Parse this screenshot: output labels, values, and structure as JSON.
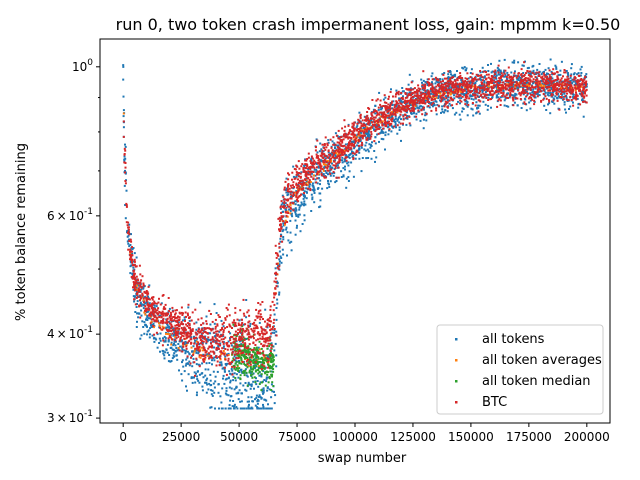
{
  "chart_data": {
    "type": "scatter",
    "title": "run 0, two token crash impermanent loss, gain: mpmm k=0.50",
    "xlabel": "swap number",
    "ylabel": "% token balance remaining",
    "xlim": [
      -10000,
      210000
    ],
    "ylim": [
      0.295,
      1.1
    ],
    "yscale": "log",
    "x_ticks": [
      0,
      25000,
      50000,
      75000,
      100000,
      125000,
      150000,
      175000,
      200000
    ],
    "x_tick_labels": [
      "0",
      "25000",
      "50000",
      "75000",
      "100000",
      "125000",
      "150000",
      "175000",
      "200000"
    ],
    "y_major_ticks": [
      0.3,
      0.4,
      0.6,
      1.0
    ],
    "y_tick_labels": [
      {
        "base": "3",
        "exp": "-1"
      },
      {
        "base": "4",
        "exp": "-1"
      },
      {
        "base": "6",
        "exp": "-1"
      },
      {
        "base": "10",
        "exp": "0"
      }
    ],
    "y_minor_ticks": [
      0.5,
      0.7,
      0.8,
      0.9
    ],
    "legend_position": "lower-right",
    "series": [
      {
        "name": "all tokens",
        "color": "#1f77b4",
        "x": [
          0,
          500,
          2000,
          5000,
          10000,
          15000,
          20000,
          25000,
          30000,
          35000,
          40000,
          45000,
          50000,
          55000,
          60000,
          64000,
          66000,
          68000,
          70000,
          75000,
          80000,
          90000,
          100000,
          110000,
          120000,
          130000,
          140000,
          150000,
          160000,
          170000,
          180000,
          190000,
          200000
        ],
        "y": [
          0.95,
          0.75,
          0.56,
          0.47,
          0.43,
          0.41,
          0.4,
          0.385,
          0.375,
          0.37,
          0.36,
          0.355,
          0.35,
          0.34,
          0.335,
          0.335,
          0.42,
          0.56,
          0.6,
          0.64,
          0.67,
          0.72,
          0.77,
          0.82,
          0.87,
          0.9,
          0.92,
          0.93,
          0.94,
          0.94,
          0.94,
          0.93,
          0.93
        ],
        "spread": [
          0.08,
          0.08,
          0.04,
          0.04,
          0.035,
          0.035,
          0.035,
          0.04,
          0.045,
          0.05,
          0.055,
          0.06,
          0.06,
          0.06,
          0.06,
          0.06,
          0.08,
          0.06,
          0.06,
          0.06,
          0.06,
          0.06,
          0.06,
          0.06,
          0.06,
          0.06,
          0.06,
          0.06,
          0.06,
          0.06,
          0.06,
          0.06,
          0.06
        ]
      },
      {
        "name": "all token averages",
        "color": "#ff7f0e",
        "x": [
          0,
          2000,
          5000,
          10000,
          20000,
          30000,
          40000,
          50000,
          60000,
          64000,
          68000,
          75000,
          90000,
          110000,
          130000,
          150000,
          170000,
          200000
        ],
        "y": [
          0.9,
          0.56,
          0.47,
          0.43,
          0.4,
          0.38,
          0.37,
          0.37,
          0.37,
          0.37,
          0.57,
          0.65,
          0.73,
          0.83,
          0.9,
          0.93,
          0.94,
          0.93
        ],
        "spread": [
          0.01,
          0.01,
          0.01,
          0.01,
          0.01,
          0.01,
          0.01,
          0.01,
          0.01,
          0.01,
          0.01,
          0.01,
          0.01,
          0.01,
          0.01,
          0.01,
          0.01,
          0.01
        ]
      },
      {
        "name": "all token median",
        "color": "#2ca02c",
        "x": [
          47000,
          50000,
          53000,
          56000,
          59000,
          62000,
          65000
        ],
        "y": [
          0.38,
          0.375,
          0.37,
          0.365,
          0.365,
          0.36,
          0.36
        ],
        "spread": [
          0.025,
          0.025,
          0.025,
          0.025,
          0.025,
          0.025,
          0.025
        ]
      },
      {
        "name": "BTC",
        "color": "#d62728",
        "x": [
          0,
          500,
          2000,
          5000,
          10000,
          15000,
          20000,
          25000,
          30000,
          35000,
          40000,
          45000,
          50000,
          55000,
          60000,
          64000,
          66000,
          68000,
          70000,
          75000,
          80000,
          90000,
          100000,
          110000,
          120000,
          130000,
          140000,
          150000,
          160000,
          170000,
          180000,
          190000,
          200000
        ],
        "y": [
          0.92,
          0.75,
          0.57,
          0.48,
          0.445,
          0.43,
          0.415,
          0.405,
          0.395,
          0.39,
          0.39,
          0.39,
          0.395,
          0.4,
          0.4,
          0.4,
          0.48,
          0.59,
          0.63,
          0.67,
          0.7,
          0.74,
          0.79,
          0.84,
          0.88,
          0.91,
          0.925,
          0.935,
          0.94,
          0.94,
          0.94,
          0.935,
          0.93
        ],
        "spread": [
          0.06,
          0.06,
          0.03,
          0.03,
          0.025,
          0.025,
          0.025,
          0.03,
          0.03,
          0.03,
          0.03,
          0.035,
          0.035,
          0.035,
          0.035,
          0.035,
          0.06,
          0.04,
          0.045,
          0.045,
          0.045,
          0.045,
          0.045,
          0.045,
          0.045,
          0.045,
          0.045,
          0.045,
          0.045,
          0.045,
          0.045,
          0.045,
          0.045
        ]
      }
    ]
  }
}
